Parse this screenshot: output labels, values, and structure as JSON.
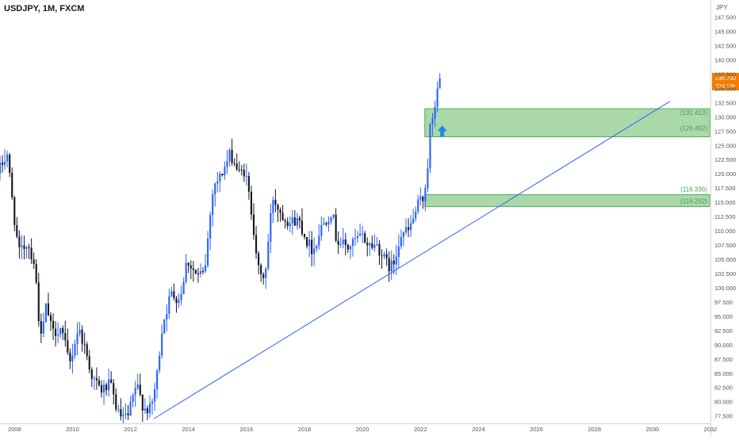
{
  "header": {
    "title": "USDJPY, 1M, FXCM"
  },
  "colors": {
    "up": "#2962ff",
    "down": "#131722",
    "zone_fill": "#a5d6a7",
    "zone_border": "#4caf50",
    "zone_text": "#43a047",
    "trendline": "#2962ff",
    "arrow": "#1e88e5",
    "price_tag": "#f57c00",
    "axis_text": "#555555"
  },
  "chart_data": {
    "type": "candlestick",
    "currency_label": "JPY",
    "y_axis": {
      "range": [
        76.2,
        150.5
      ],
      "ticks": [
        "77.500",
        "80.000",
        "82.500",
        "85.000",
        "87.500",
        "90.000",
        "92.500",
        "95.000",
        "97.500",
        "100.000",
        "102.500",
        "105.000",
        "107.500",
        "110.000",
        "112.500",
        "115.000",
        "117.500",
        "120.000",
        "122.500",
        "125.000",
        "127.500",
        "130.000",
        "132.500",
        "135.000",
        "137.500",
        "140.000",
        "142.500",
        "145.000",
        "147.500"
      ]
    },
    "x_axis": {
      "range": [
        2007.5,
        2032.0
      ],
      "ticks": [
        "2008",
        "2010",
        "2012",
        "2014",
        "2016",
        "2018",
        "2020",
        "2022",
        "2024",
        "2026",
        "2028",
        "2030",
        "2032"
      ]
    },
    "price_tags": [
      "136.732",
      "22d 13h"
    ],
    "zones": [
      {
        "top": 131.413,
        "bottom": 126.492,
        "top_label": "(131.413)",
        "bottom_label": "(126.492)"
      },
      {
        "top": 116.336,
        "bottom": 114.252,
        "top_label": "(116.336)",
        "bottom_label": "(114.252)"
      }
    ],
    "trendline": {
      "start": [
        2012.8,
        77.0
      ],
      "end": [
        2030.6,
        132.7
      ]
    },
    "arrow": {
      "x": 2022.75,
      "y": 127.5,
      "direction": "up"
    },
    "anchors": [
      [
        2007.5,
        121.0
      ],
      [
        2007.75,
        123.5
      ],
      [
        2007.95,
        114.0
      ],
      [
        2008.15,
        106.0
      ],
      [
        2008.45,
        108.0
      ],
      [
        2008.7,
        104.0
      ],
      [
        2008.9,
        90.5
      ],
      [
        2009.1,
        97.0
      ],
      [
        2009.3,
        92.0
      ],
      [
        2009.6,
        93.0
      ],
      [
        2009.9,
        86.5
      ],
      [
        2010.2,
        93.0
      ],
      [
        2010.4,
        90.0
      ],
      [
        2010.7,
        84.0
      ],
      [
        2011.0,
        82.0
      ],
      [
        2011.3,
        83.0
      ],
      [
        2011.6,
        77.5
      ],
      [
        2011.9,
        77.0
      ],
      [
        2012.2,
        83.0
      ],
      [
        2012.45,
        79.0
      ],
      [
        2012.7,
        78.5
      ],
      [
        2012.9,
        84.0
      ],
      [
        2013.1,
        93.5
      ],
      [
        2013.4,
        99.0
      ],
      [
        2013.7,
        98.0
      ],
      [
        2013.95,
        105.0
      ],
      [
        2014.3,
        102.0
      ],
      [
        2014.55,
        102.5
      ],
      [
        2014.85,
        118.0
      ],
      [
        2015.1,
        119.5
      ],
      [
        2015.45,
        123.5
      ],
      [
        2015.75,
        120.0
      ],
      [
        2015.95,
        120.5
      ],
      [
        2016.2,
        112.5
      ],
      [
        2016.45,
        101.5
      ],
      [
        2016.65,
        102.5
      ],
      [
        2016.9,
        116.0
      ],
      [
        2017.2,
        113.0
      ],
      [
        2017.5,
        111.5
      ],
      [
        2017.8,
        112.0
      ],
      [
        2018.1,
        108.0
      ],
      [
        2018.3,
        106.5
      ],
      [
        2018.6,
        111.0
      ],
      [
        2018.95,
        113.5
      ],
      [
        2019.1,
        108.5
      ],
      [
        2019.5,
        107.0
      ],
      [
        2019.8,
        108.5
      ],
      [
        2020.0,
        109.0
      ],
      [
        2020.2,
        107.5
      ],
      [
        2020.5,
        107.5
      ],
      [
        2020.75,
        105.0
      ],
      [
        2020.95,
        103.5
      ],
      [
        2021.1,
        104.5
      ],
      [
        2021.3,
        109.5
      ],
      [
        2021.6,
        110.0
      ],
      [
        2021.95,
        115.0
      ],
      [
        2022.1,
        115.5
      ],
      [
        2022.25,
        121.5
      ],
      [
        2022.35,
        129.5
      ],
      [
        2022.45,
        128.5
      ],
      [
        2022.55,
        135.5
      ],
      [
        2022.65,
        134.5
      ],
      [
        2022.72,
        136.73
      ]
    ]
  }
}
